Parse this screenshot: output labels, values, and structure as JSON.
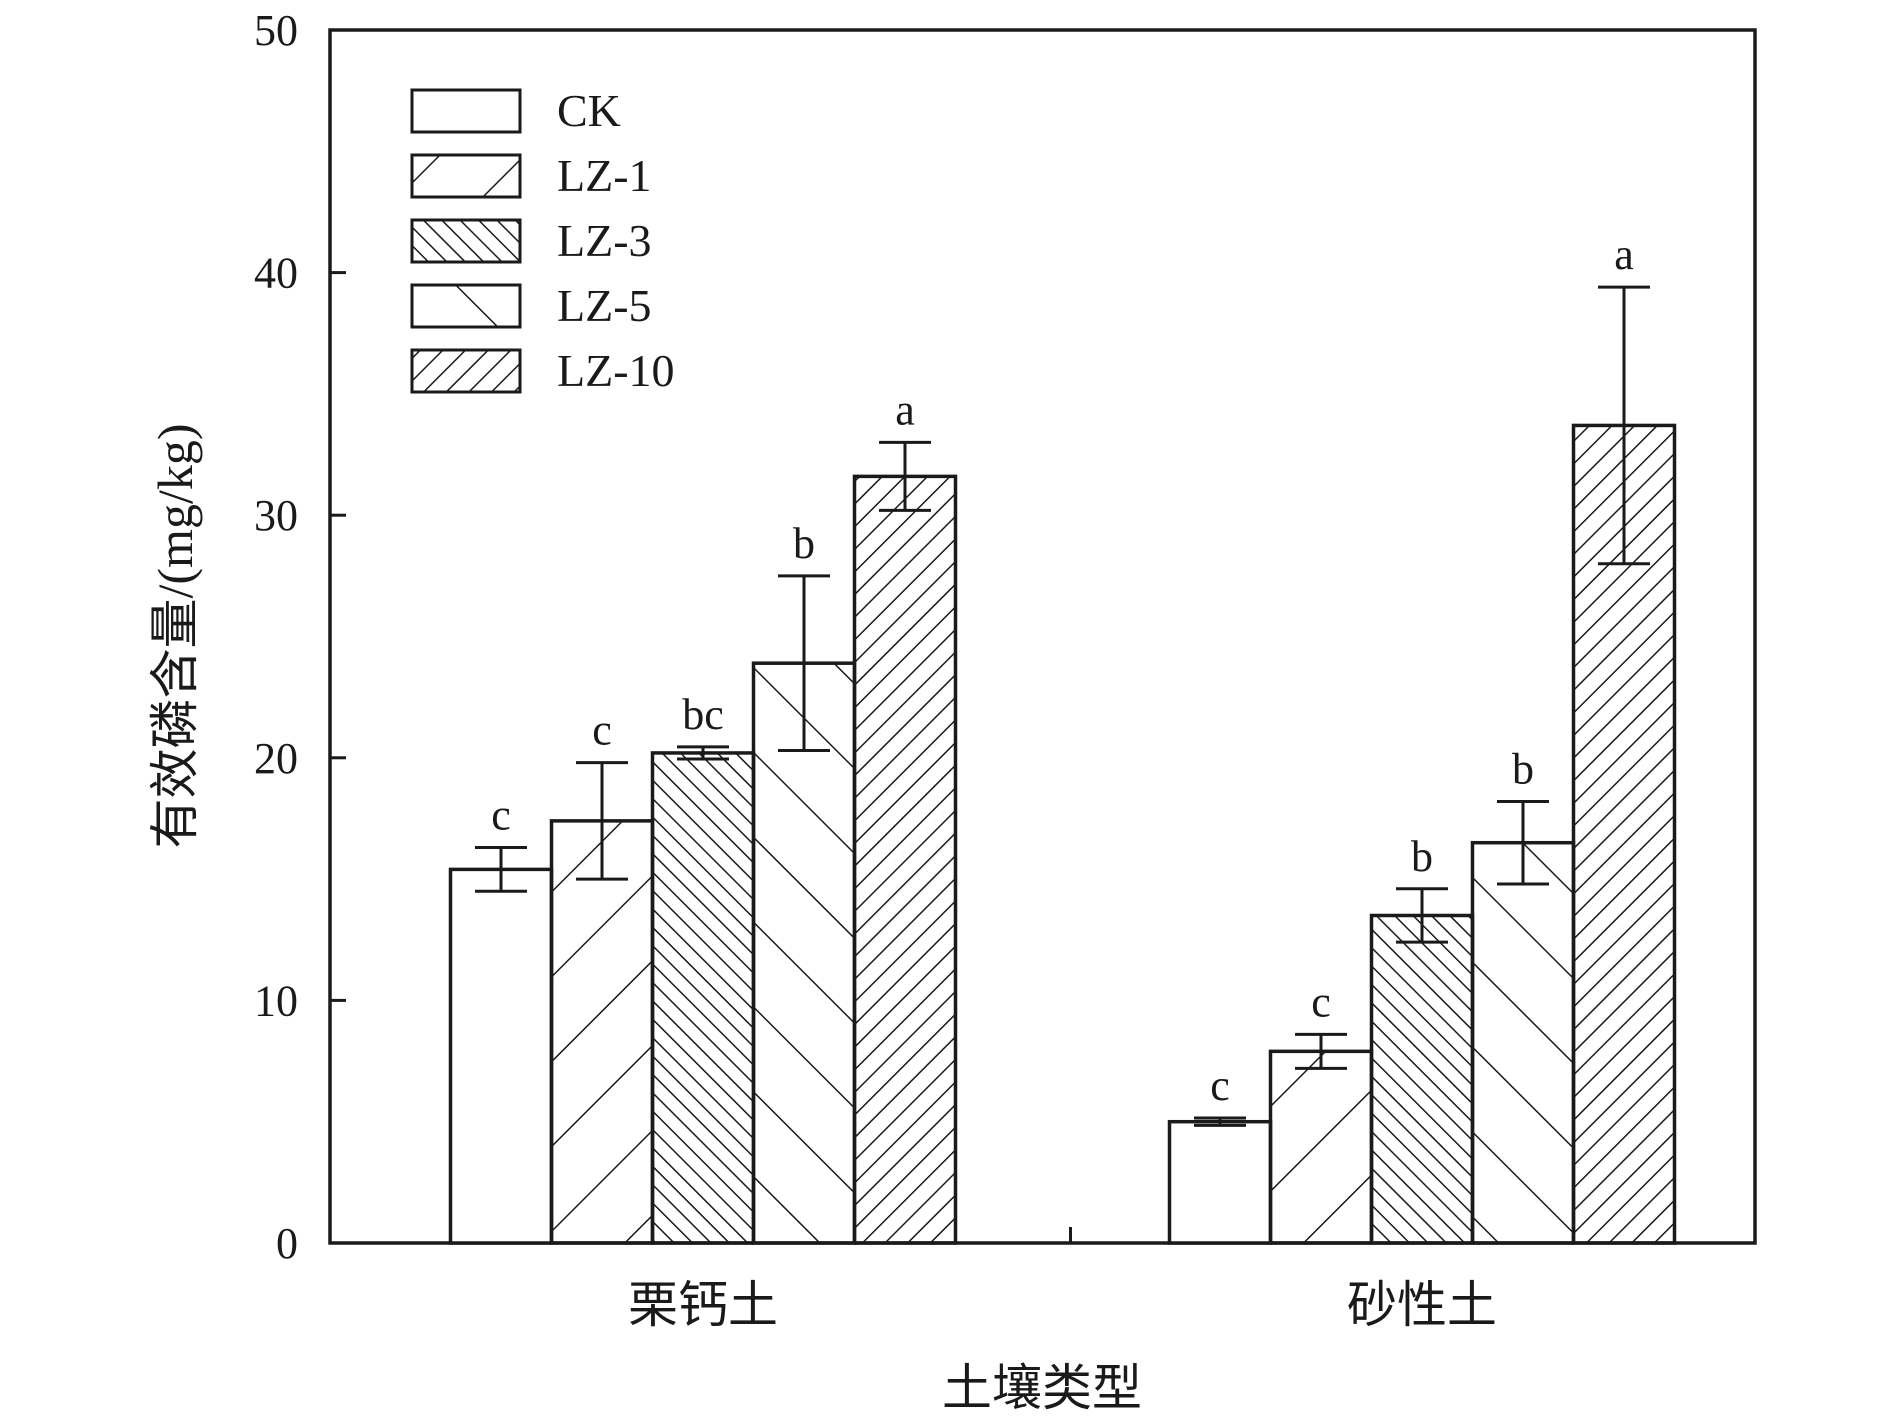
{
  "chart_data": {
    "type": "bar",
    "categories": [
      "栗钙土",
      "砂性土"
    ],
    "xlabel": "土壤类型",
    "ylabel": "有效磷含量/(mg/kg)",
    "ylim": [
      0,
      50
    ],
    "yticks": [
      0,
      10,
      20,
      30,
      40,
      50
    ],
    "grid": false,
    "legend": "top-left",
    "series": [
      {
        "name": "CK",
        "pattern": "none",
        "values": [
          15.4,
          5.0
        ],
        "errors": [
          0.9,
          0.15
        ],
        "labels": [
          "c",
          "c"
        ]
      },
      {
        "name": "LZ-1",
        "pattern": "backslash-sparse",
        "values": [
          17.4,
          7.9
        ],
        "errors": [
          2.4,
          0.7
        ],
        "labels": [
          "c",
          "c"
        ]
      },
      {
        "name": "LZ-3",
        "pattern": "slash-dense",
        "values": [
          20.2,
          13.5
        ],
        "errors": [
          0.25,
          1.1
        ],
        "labels": [
          "bc",
          "b"
        ]
      },
      {
        "name": "LZ-5",
        "pattern": "slash-sparse",
        "values": [
          23.9,
          16.5
        ],
        "errors": [
          3.6,
          1.7
        ],
        "labels": [
          "b",
          "b"
        ]
      },
      {
        "name": "LZ-10",
        "pattern": "backslash-dense",
        "values": [
          31.6,
          33.7
        ],
        "errors": [
          1.4,
          5.7
        ],
        "labels": [
          "a",
          "a"
        ]
      }
    ],
    "colors": {
      "stroke": "#1a1a1a",
      "fill": "#ffffff"
    }
  }
}
